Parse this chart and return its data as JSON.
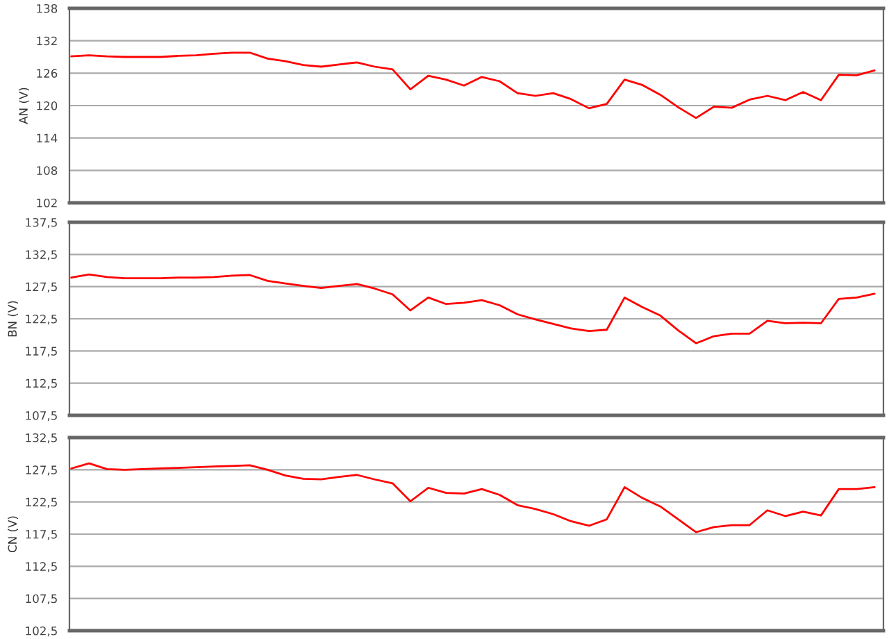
{
  "chart_data": [
    {
      "type": "line",
      "ylabel": "AN (V)",
      "categories": [
        null,
        null,
        null,
        null,
        null,
        null,
        null,
        null,
        null,
        null,
        null,
        null,
        null,
        null,
        null,
        null,
        null,
        null,
        null,
        null,
        null,
        null,
        null,
        null,
        null,
        null,
        null,
        null,
        null,
        null,
        null,
        null,
        null,
        null,
        null,
        null,
        null,
        null,
        null,
        null,
        null,
        null,
        null,
        null,
        null,
        null
      ],
      "ylim": [
        102,
        138
      ],
      "yticks": [
        102,
        108,
        114,
        120,
        126,
        132,
        138
      ],
      "grid": "y",
      "series": [
        {
          "color": "#ff0000",
          "values": [
            129.1,
            129.3,
            129.1,
            129.0,
            129.0,
            129.0,
            129.2,
            129.3,
            129.6,
            129.8,
            129.8,
            128.7,
            128.2,
            127.5,
            127.2,
            127.6,
            128.0,
            127.2,
            126.7,
            123.0,
            125.5,
            124.8,
            123.7,
            125.3,
            124.5,
            122.3,
            121.8,
            122.3,
            121.2,
            119.5,
            120.3,
            124.8,
            123.8,
            122.0,
            119.7,
            117.7,
            119.8,
            119.6,
            121.1,
            121.8,
            121.0,
            122.5,
            121.0,
            125.7,
            125.6,
            126.5
          ]
        }
      ]
    },
    {
      "type": "line",
      "ylabel": "BN (V)",
      "categories": [
        null,
        null,
        null,
        null,
        null,
        null,
        null,
        null,
        null,
        null,
        null,
        null,
        null,
        null,
        null,
        null,
        null,
        null,
        null,
        null,
        null,
        null,
        null,
        null,
        null,
        null,
        null,
        null,
        null,
        null,
        null,
        null,
        null,
        null,
        null,
        null,
        null,
        null,
        null,
        null,
        null,
        null,
        null,
        null,
        null,
        null
      ],
      "ylim": [
        107.5,
        137.5
      ],
      "yticks": [
        {
          "value": 107.5,
          "label": "107,5"
        },
        {
          "value": 112.5,
          "label": "112,5"
        },
        {
          "value": 117.5,
          "label": "117,5"
        },
        {
          "value": 122.5,
          "label": "122,5"
        },
        {
          "value": 127.5,
          "label": "127,5"
        },
        {
          "value": 132.5,
          "label": "132,5"
        },
        {
          "value": 137.5,
          "label": "137,5"
        }
      ],
      "grid": "y",
      "series": [
        {
          "color": "#ff0000",
          "values": [
            128.9,
            129.4,
            129.0,
            128.8,
            128.8,
            128.8,
            128.9,
            128.9,
            129.0,
            129.2,
            129.3,
            128.4,
            128.0,
            127.6,
            127.3,
            127.6,
            127.9,
            127.2,
            126.3,
            123.8,
            125.8,
            124.8,
            125.0,
            125.4,
            124.6,
            123.2,
            122.4,
            121.7,
            121.0,
            120.6,
            120.8,
            125.8,
            124.3,
            123.0,
            120.7,
            118.7,
            119.8,
            120.2,
            120.2,
            122.2,
            121.8,
            121.9,
            121.8,
            125.6,
            125.8,
            126.4
          ]
        }
      ]
    },
    {
      "type": "line",
      "ylabel": "CN (V)",
      "categories": [
        null,
        null,
        null,
        null,
        null,
        null,
        null,
        null,
        null,
        null,
        null,
        null,
        null,
        null,
        null,
        null,
        null,
        null,
        null,
        null,
        null,
        null,
        null,
        null,
        null,
        null,
        null,
        null,
        null,
        null,
        null,
        null,
        null,
        null,
        null,
        null,
        null,
        null,
        null,
        null,
        null,
        null,
        null,
        null,
        null,
        null
      ],
      "ylim": [
        102.5,
        132.5
      ],
      "yticks": [
        {
          "value": 102.5,
          "label": "102,5"
        },
        {
          "value": 107.5,
          "label": "107,5"
        },
        {
          "value": 112.5,
          "label": "112,5"
        },
        {
          "value": 117.5,
          "label": "117,5"
        },
        {
          "value": 122.5,
          "label": "122,5"
        },
        {
          "value": 127.5,
          "label": "127,5"
        },
        {
          "value": 132.5,
          "label": "132,5"
        }
      ],
      "grid": "y",
      "series": [
        {
          "color": "#ff0000",
          "values": [
            127.7,
            128.5,
            127.6,
            127.5,
            127.6,
            127.7,
            127.8,
            127.9,
            128.0,
            128.1,
            128.2,
            127.5,
            126.6,
            126.1,
            126.0,
            126.4,
            126.7,
            126.0,
            125.4,
            122.6,
            124.7,
            123.9,
            123.8,
            124.5,
            123.6,
            122.0,
            121.4,
            120.6,
            119.5,
            118.8,
            119.8,
            124.8,
            123.1,
            121.8,
            119.8,
            117.8,
            118.6,
            118.9,
            118.9,
            121.2,
            120.3,
            121.0,
            120.4,
            124.5,
            124.5,
            124.8
          ]
        }
      ]
    }
  ]
}
